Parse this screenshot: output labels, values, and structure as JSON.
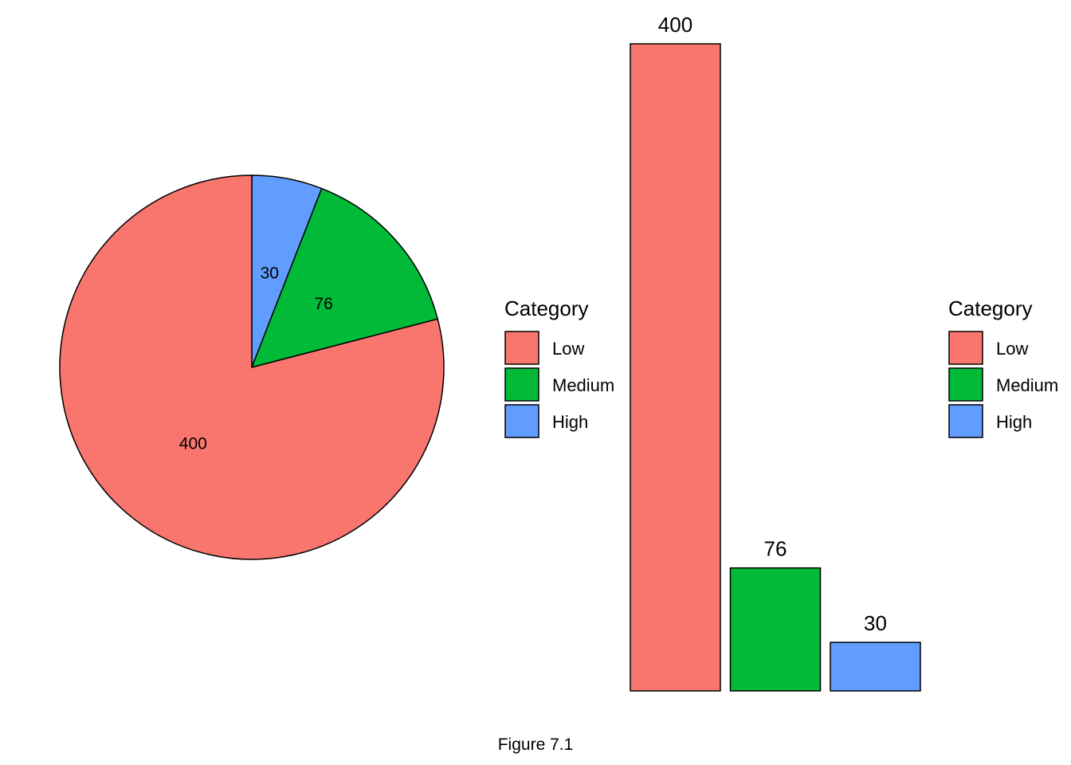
{
  "caption": "Figure 7.1",
  "colors": {
    "Low": "#F8766D",
    "Medium": "#00BA38",
    "High": "#619CFF",
    "outline": "#000000"
  },
  "legend": {
    "title": "Category",
    "entries": [
      "Low",
      "Medium",
      "High"
    ]
  },
  "chart_data": [
    {
      "type": "pie",
      "categories": [
        "Low",
        "Medium",
        "High"
      ],
      "values": [
        400,
        76,
        30
      ],
      "data_labels": [
        "400",
        "76",
        "30"
      ],
      "title": "",
      "legend_title": "Category",
      "legend_position": "right"
    },
    {
      "type": "bar",
      "categories": [
        "Low",
        "Medium",
        "High"
      ],
      "values": [
        400,
        76,
        30
      ],
      "data_labels": [
        "400",
        "76",
        "30"
      ],
      "title": "",
      "xlabel": "",
      "ylabel": "",
      "ylim": [
        0,
        400
      ],
      "grid": false,
      "axes_visible": false,
      "legend_title": "Category",
      "legend_position": "right"
    }
  ]
}
